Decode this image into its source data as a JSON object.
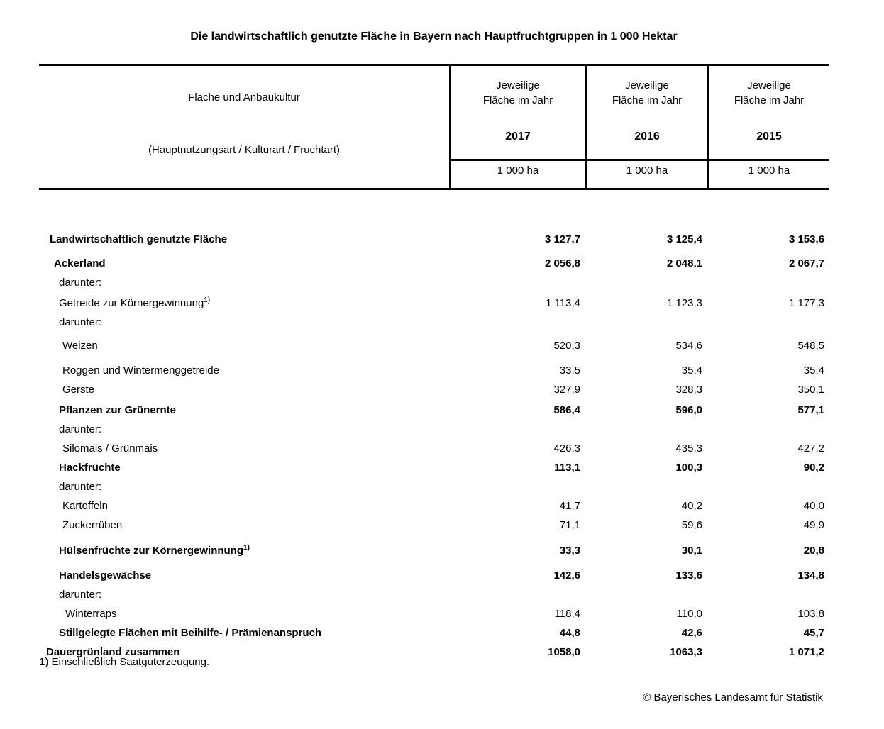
{
  "title": "Die landwirtschaftlich genutzte Fläche in Bayern nach Hauptfruchtgruppen in 1 000 Hektar",
  "header": {
    "col_label_line1": "Fläche und Anbaukultur",
    "col_label_line2": "(Hauptnutzungsart / Kulturart / Fruchtart)",
    "year_cols": [
      {
        "caption_line1": "Jeweilige",
        "caption_line2": "Fläche im Jahr",
        "year": "2017",
        "unit": "1 000 ha"
      },
      {
        "caption_line1": "Jeweilige",
        "caption_line2": "Fläche im Jahr",
        "year": "2016",
        "unit": "1 000 ha"
      },
      {
        "caption_line1": "Jeweilige",
        "caption_line2": "Fläche im Jahr",
        "year": "2015",
        "unit": "1 000 ha"
      }
    ]
  },
  "rows": [
    {
      "label": "Landwirtschaftlich genutzte Fläche",
      "bold": true,
      "indent": 1,
      "v2017": "3 127,7",
      "v2016": "3 125,4",
      "v2015": "3 153,6"
    },
    {
      "label": "Ackerland",
      "bold": true,
      "indent": 2,
      "v2017": "2 056,8",
      "v2016": "2 048,1",
      "v2015": "2 067,7"
    },
    {
      "label": "darunter:",
      "bold": false,
      "indent": 3,
      "v2017": "",
      "v2016": "",
      "v2015": ""
    },
    {
      "label": "Getreide zur Körnergewinnung",
      "sup": "1)",
      "bold": false,
      "indent": 3,
      "v2017": "1 113,4",
      "v2016": "1 123,3",
      "v2015": "1 177,3"
    },
    {
      "label": "darunter:",
      "bold": false,
      "indent": 3,
      "v2017": "",
      "v2016": "",
      "v2015": ""
    },
    {
      "label": "Weizen",
      "bold": false,
      "indent": 4,
      "v2017": "520,3",
      "v2016": "534,6",
      "v2015": "548,5"
    },
    {
      "label": "Roggen und Wintermenggetreide",
      "bold": false,
      "indent": 4,
      "v2017": "33,5",
      "v2016": "35,4",
      "v2015": "35,4"
    },
    {
      "label": "Gerste",
      "bold": false,
      "indent": 4,
      "v2017": "327,9",
      "v2016": "328,3",
      "v2015": "350,1"
    },
    {
      "label": "Pflanzen zur Grünernte",
      "bold": true,
      "indent": 3,
      "v2017": "586,4",
      "v2016": "596,0",
      "v2015": "577,1"
    },
    {
      "label": "darunter:",
      "bold": false,
      "indent": 3,
      "v2017": "",
      "v2016": "",
      "v2015": ""
    },
    {
      "label": "Silomais / Grünmais",
      "bold": false,
      "indent": 4,
      "v2017": "426,3",
      "v2016": "435,3",
      "v2015": "427,2"
    },
    {
      "label": "Hackfrüchte",
      "bold": true,
      "indent": 3,
      "v2017": "113,1",
      "v2016": "100,3",
      "v2015": "90,2"
    },
    {
      "label": "darunter:",
      "bold": false,
      "indent": 3,
      "v2017": "",
      "v2016": "",
      "v2015": ""
    },
    {
      "label": "Kartoffeln",
      "bold": false,
      "indent": 4,
      "v2017": "41,7",
      "v2016": "40,2",
      "v2015": "40,0"
    },
    {
      "label": "Zuckerrüben",
      "bold": false,
      "indent": 4,
      "v2017": "71,1",
      "v2016": "59,6",
      "v2015": "49,9"
    },
    {
      "label": "Hülsenfrüchte zur Körnergewinnung",
      "sup": "1)",
      "bold": true,
      "indent": 3,
      "v2017": "33,3",
      "v2016": "30,1",
      "v2015": "20,8"
    },
    {
      "label": "Handelsgewächse",
      "bold": true,
      "indent": 3,
      "v2017": "142,6",
      "v2016": "133,6",
      "v2015": "134,8"
    },
    {
      "label": "darunter:",
      "bold": false,
      "indent": 3,
      "v2017": "",
      "v2016": "",
      "v2015": ""
    },
    {
      "label": "Winterraps",
      "bold": false,
      "indent": 5,
      "v2017": "118,4",
      "v2016": "110,0",
      "v2015": "103,8"
    },
    {
      "label": "Stillgelegte Flächen mit Beihilfe- / Prämienanspruch",
      "bold": true,
      "indent": 3,
      "v2017": "44,8",
      "v2016": "42,6",
      "v2015": "45,7"
    },
    {
      "label": "Dauergrünland zusammen",
      "bold": true,
      "indent": 0,
      "v2017": "1058,0",
      "v2016": "1063,3",
      "v2015": "1 071,2"
    }
  ],
  "footnote": "1) Einschließlich Saatguterzeugung.",
  "copyright": "© Bayerisches Landesamt für Statistik"
}
